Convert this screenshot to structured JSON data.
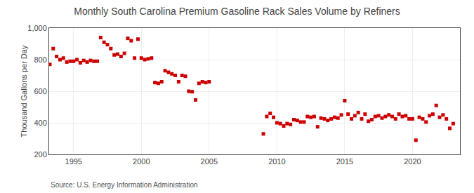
{
  "chart_data": {
    "type": "scatter",
    "title": "Monthly South Carolina Premium Gasoline Rack Sales Volume by Refiners",
    "y_label": "Thousand Gallons per Day",
    "annotations": [
      "Source: U.S. Energy Information Administration"
    ],
    "color": "#cc0000",
    "marker": "square",
    "grid": true,
    "xlim": [
      1993.2,
      2023.5
    ],
    "xticks": [
      1995,
      2000,
      2005,
      2010,
      2015,
      2020
    ],
    "ylim": [
      200,
      1000
    ],
    "yticks": [
      200,
      400,
      600,
      800,
      {
        "value": 1000,
        "label": "1,000"
      }
    ],
    "x": [
      1993.25,
      1993.5,
      1993.75,
      1994.0,
      1994.25,
      1994.5,
      1994.75,
      1995.0,
      1995.25,
      1995.5,
      1995.75,
      1996.0,
      1996.25,
      1996.5,
      1996.75,
      1997.0,
      1997.25,
      1997.5,
      1997.75,
      1998.0,
      1998.25,
      1998.5,
      1998.75,
      1999.0,
      1999.25,
      1999.5,
      1999.75,
      2000.0,
      2000.25,
      2000.5,
      2000.75,
      2001.0,
      2001.25,
      2001.5,
      2001.75,
      2002.0,
      2002.25,
      2002.5,
      2002.75,
      2003.0,
      2003.25,
      2003.5,
      2003.75,
      2004.0,
      2004.25,
      2004.5,
      2004.75,
      2005.0,
      2009.0,
      2009.25,
      2009.5,
      2009.75,
      2010.0,
      2010.25,
      2010.5,
      2010.75,
      2011.0,
      2011.25,
      2011.5,
      2011.75,
      2012.0,
      2012.25,
      2012.5,
      2012.75,
      2013.0,
      2013.25,
      2013.5,
      2013.75,
      2014.0,
      2014.25,
      2014.5,
      2014.75,
      2015.0,
      2015.25,
      2015.5,
      2015.75,
      2016.0,
      2016.25,
      2016.5,
      2016.75,
      2017.0,
      2017.25,
      2017.5,
      2017.75,
      2018.0,
      2018.25,
      2018.5,
      2018.75,
      2019.0,
      2019.25,
      2019.5,
      2019.75,
      2020.0,
      2020.25,
      2020.5,
      2020.75,
      2021.0,
      2021.25,
      2021.5,
      2021.75,
      2022.0,
      2022.25,
      2022.5,
      2022.75,
      2023.0
    ],
    "values": [
      770,
      870,
      820,
      800,
      810,
      785,
      790,
      790,
      800,
      780,
      795,
      785,
      795,
      790,
      790,
      940,
      910,
      895,
      870,
      830,
      835,
      820,
      840,
      935,
      920,
      810,
      930,
      810,
      800,
      805,
      810,
      655,
      650,
      660,
      730,
      720,
      710,
      700,
      660,
      700,
      695,
      600,
      597,
      545,
      650,
      660,
      655,
      660,
      330,
      440,
      460,
      435,
      400,
      395,
      380,
      395,
      390,
      420,
      415,
      405,
      405,
      440,
      435,
      440,
      375,
      430,
      425,
      415,
      425,
      435,
      430,
      450,
      540,
      455,
      425,
      445,
      465,
      425,
      455,
      410,
      420,
      440,
      445,
      430,
      440,
      450,
      440,
      425,
      455,
      440,
      445,
      425,
      425,
      290,
      435,
      425,
      405,
      445,
      455,
      510,
      435,
      450,
      425,
      365,
      395
    ]
  }
}
